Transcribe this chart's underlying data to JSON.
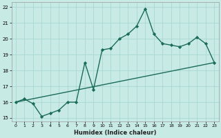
{
  "xlabel": "Humidex (Indice chaleur)",
  "xlim": [
    -0.5,
    23.5
  ],
  "ylim": [
    14.8,
    22.3
  ],
  "yticks": [
    15,
    16,
    17,
    18,
    19,
    20,
    21,
    22
  ],
  "xticks": [
    0,
    1,
    2,
    3,
    4,
    5,
    6,
    7,
    8,
    9,
    10,
    11,
    12,
    13,
    14,
    15,
    16,
    17,
    18,
    19,
    20,
    21,
    22,
    23
  ],
  "bg_color": "#c8eae4",
  "grid_color": "#a8d8d0",
  "line_color": "#1a6b5a",
  "curve1_x": [
    0,
    1,
    2,
    3,
    4,
    5,
    6,
    7,
    8,
    9,
    10,
    11,
    12,
    13,
    14,
    15,
    16,
    17,
    18,
    19,
    20,
    21,
    22,
    23
  ],
  "curve1_y": [
    16.0,
    16.2,
    15.9,
    15.1,
    15.3,
    15.5,
    16.0,
    16.0,
    18.5,
    16.8,
    19.3,
    19.4,
    20.0,
    20.3,
    20.8,
    21.9,
    20.3,
    19.7,
    19.6,
    19.5,
    19.7,
    20.1,
    19.7,
    18.5
  ],
  "curve2_x": [
    0,
    23
  ],
  "curve2_y": [
    16.0,
    18.5
  ],
  "marker": "D",
  "marker_size": 2.2,
  "line_width": 1.0
}
